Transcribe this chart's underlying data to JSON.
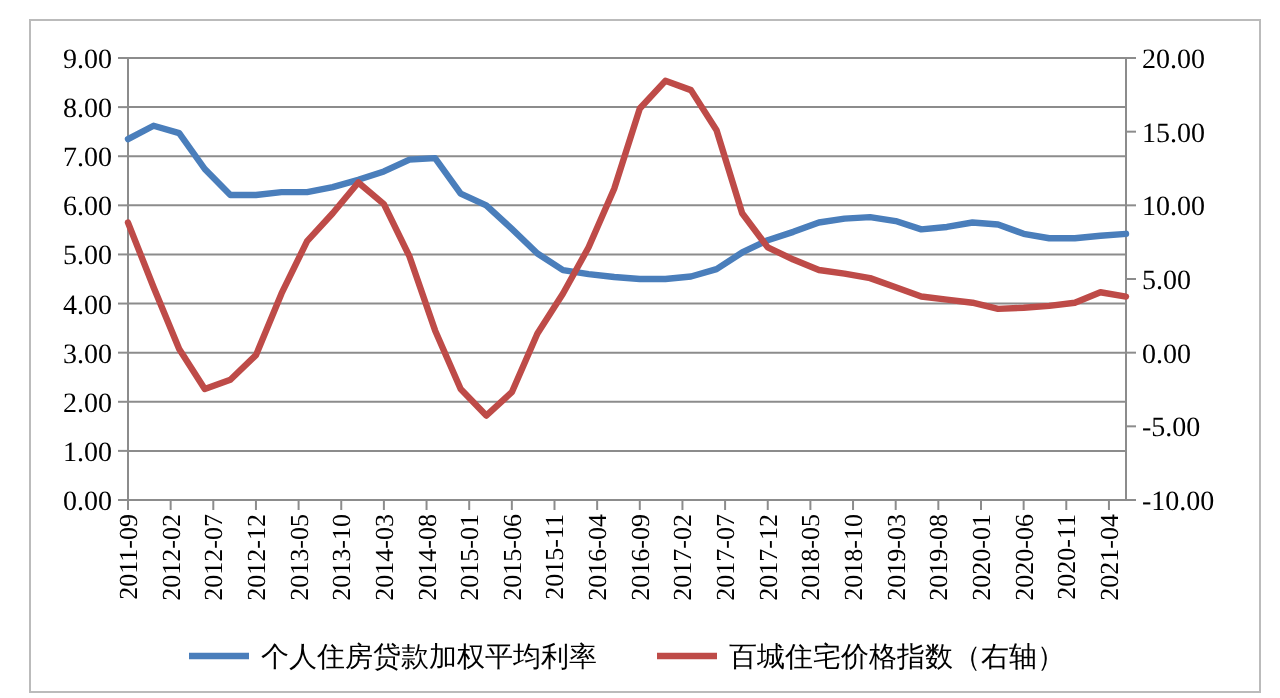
{
  "chart_data": {
    "type": "line",
    "x": [
      "2011-09",
      "2011-12",
      "2012-03",
      "2012-06",
      "2012-09",
      "2012-12",
      "2013-03",
      "2013-06",
      "2013-09",
      "2013-12",
      "2014-03",
      "2014-06",
      "2014-09",
      "2014-12",
      "2015-03",
      "2015-06",
      "2015-09",
      "2015-12",
      "2016-03",
      "2016-06",
      "2016-09",
      "2016-12",
      "2017-03",
      "2017-06",
      "2017-09",
      "2017-12",
      "2018-03",
      "2018-06",
      "2018-09",
      "2018-12",
      "2019-03",
      "2019-06",
      "2019-09",
      "2019-12",
      "2020-03",
      "2020-06",
      "2020-09",
      "2020-12",
      "2021-03",
      "2021-06"
    ],
    "series": [
      {
        "name": "个人住房贷款加权平均利率",
        "color": "#4a7ebb",
        "values": [
          7.35,
          7.62,
          7.47,
          6.74,
          6.21,
          6.21,
          6.27,
          6.27,
          6.37,
          6.52,
          6.69,
          6.93,
          6.96,
          6.24,
          6.0,
          5.52,
          5.02,
          4.68,
          4.6,
          4.54,
          4.5,
          4.5,
          4.55,
          4.7,
          5.04,
          5.29,
          5.46,
          5.65,
          5.73,
          5.76,
          5.68,
          5.51,
          5.56,
          5.65,
          5.61,
          5.42,
          5.33,
          5.33,
          5.38,
          5.42
        ]
      },
      {
        "name": "百城住宅价格指数（右轴）",
        "color": "#be4b48",
        "axis": "y2",
        "values": [
          8.83,
          4.44,
          0.25,
          -2.47,
          -1.84,
          -0.17,
          4.02,
          7.57,
          9.46,
          11.55,
          10.08,
          6.53,
          1.51,
          -2.47,
          -4.27,
          -2.68,
          1.3,
          4.02,
          7.15,
          11.13,
          16.57,
          18.45,
          17.82,
          15.1,
          9.46,
          7.15,
          6.32,
          5.61,
          5.36,
          5.06,
          4.44,
          3.81,
          3.6,
          3.39,
          2.97,
          3.05,
          3.18,
          3.39,
          4.1,
          3.81
        ]
      }
    ],
    "xlim": [
      "2011-09",
      "2021-06"
    ],
    "xticks": [
      "2011-09",
      "2012-02",
      "2012-07",
      "2012-12",
      "2013-05",
      "2013-10",
      "2014-03",
      "2014-08",
      "2015-01",
      "2015-06",
      "2015-11",
      "2016-04",
      "2016-09",
      "2017-02",
      "2017-07",
      "2017-12",
      "2018-05",
      "2018-10",
      "2019-03",
      "2019-08",
      "2020-01",
      "2020-06",
      "2020-11",
      "2021-04"
    ],
    "ylim": [
      0,
      9
    ],
    "yticks": [
      {
        "value": 0,
        "label": "0.00"
      },
      {
        "value": 1,
        "label": "1.00"
      },
      {
        "value": 2,
        "label": "2.00"
      },
      {
        "value": 3,
        "label": "3.00"
      },
      {
        "value": 4,
        "label": "4.00"
      },
      {
        "value": 5,
        "label": "5.00"
      },
      {
        "value": 6,
        "label": "6.00"
      },
      {
        "value": 7,
        "label": "7.00"
      },
      {
        "value": 8,
        "label": "8.00"
      },
      {
        "value": 9,
        "label": "9.00"
      }
    ],
    "y2lim": [
      -10,
      20
    ],
    "y2ticks": [
      {
        "value": -10,
        "label": "-10.00"
      },
      {
        "value": -5,
        "label": "-5.00"
      },
      {
        "value": 0,
        "label": "0.00"
      },
      {
        "value": 5,
        "label": "5.00"
      },
      {
        "value": 10,
        "label": "10.00"
      },
      {
        "value": 15,
        "label": "15.00"
      },
      {
        "value": 20,
        "label": "20.00"
      }
    ],
    "grid": "y",
    "legend": "bottom"
  }
}
